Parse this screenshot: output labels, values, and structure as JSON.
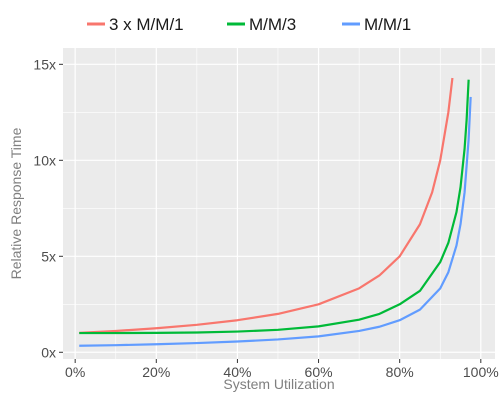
{
  "chart_data": {
    "type": "line",
    "xlabel": "System Utilization",
    "ylabel": "Relative Response Time",
    "xlim": [
      -0.03,
      1.035
    ],
    "ylim": [
      -0.35,
      15.85
    ],
    "x_ticks": [
      0,
      0.2,
      0.4,
      0.6,
      0.8,
      1.0
    ],
    "x_tick_labels": [
      "0%",
      "20%",
      "40%",
      "60%",
      "80%",
      "100%"
    ],
    "y_ticks": [
      0,
      5,
      10,
      15
    ],
    "y_tick_labels": [
      "0x",
      "5x",
      "10x",
      "15x"
    ],
    "grid": true,
    "legend_position": "top",
    "series": [
      {
        "name": "3 x M/M/1",
        "color": "#F8766D",
        "x": [
          0.01,
          0.1,
          0.2,
          0.3,
          0.4,
          0.5,
          0.6,
          0.7,
          0.75,
          0.8,
          0.85,
          0.88,
          0.9,
          0.92,
          0.93
        ],
        "y": [
          1.01,
          1.11,
          1.25,
          1.43,
          1.67,
          2.0,
          2.5,
          3.33,
          4.0,
          5.0,
          6.67,
          8.33,
          10.0,
          12.5,
          14.29
        ]
      },
      {
        "name": "M/M/3",
        "color": "#00BA38",
        "x": [
          0.01,
          0.1,
          0.2,
          0.3,
          0.4,
          0.5,
          0.6,
          0.7,
          0.75,
          0.8,
          0.85,
          0.9,
          0.92,
          0.94,
          0.95,
          0.96,
          0.965,
          0.97
        ],
        "y": [
          1.0,
          1.0,
          1.01,
          1.03,
          1.08,
          1.17,
          1.35,
          1.7,
          2.0,
          2.5,
          3.2,
          4.7,
          5.7,
          7.3,
          8.6,
          10.6,
          12.1,
          14.2
        ]
      },
      {
        "name": "M/M/1",
        "color": "#619CFF",
        "x": [
          0.01,
          0.1,
          0.2,
          0.3,
          0.4,
          0.5,
          0.6,
          0.7,
          0.75,
          0.8,
          0.85,
          0.9,
          0.92,
          0.94,
          0.95,
          0.96,
          0.97,
          0.975
        ],
        "y": [
          0.34,
          0.37,
          0.42,
          0.48,
          0.56,
          0.67,
          0.83,
          1.11,
          1.33,
          1.67,
          2.22,
          3.33,
          4.17,
          5.56,
          6.67,
          8.33,
          11.1,
          13.3
        ]
      }
    ]
  }
}
